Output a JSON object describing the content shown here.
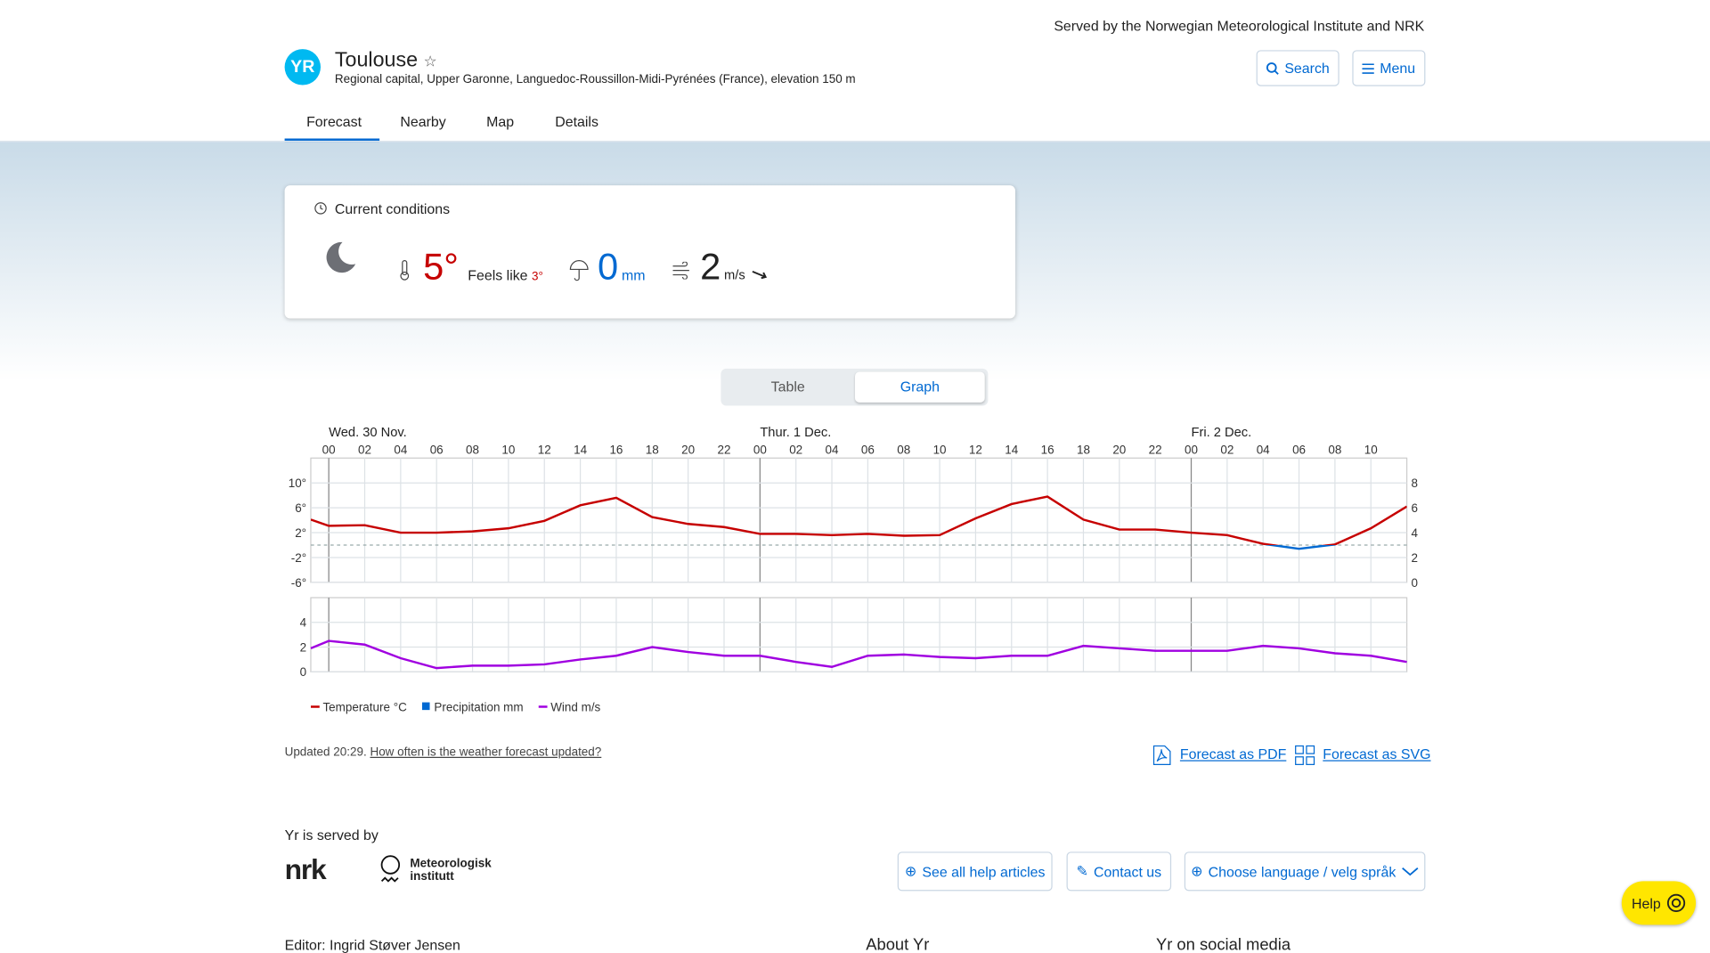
{
  "header": {
    "served_by": "Served by the Norwegian Meteorological Institute and NRK",
    "logo": "YR",
    "location": "Toulouse",
    "description": "Regional capital, Upper Garonne, Languedoc-Roussillon-Midi-Pyrénées (France), elevation 150 m",
    "search": "Search",
    "menu": "Menu"
  },
  "tabs": [
    "Forecast",
    "Nearby",
    "Map",
    "Details"
  ],
  "current": {
    "title": "Current conditions",
    "temperature": "5°",
    "feels_like_label": "Feels like",
    "feels_like": "3°",
    "precipitation": "0",
    "precipitation_unit": "mm",
    "wind": "2",
    "wind_unit": "m/s"
  },
  "view_toggle": [
    "Table",
    "Graph"
  ],
  "chart_data": {
    "type": "line",
    "days": [
      {
        "value": 0,
        "label": "Wed. 30 Nov."
      },
      {
        "value": 24,
        "label": "Thur. 1 Dec."
      },
      {
        "value": 48,
        "label": "Fri. 2 Dec."
      }
    ],
    "xlim": [
      -1,
      60
    ],
    "xticks": [
      {
        "value": 0,
        "label": "00"
      },
      {
        "value": 2,
        "label": "02"
      },
      {
        "value": 4,
        "label": "04"
      },
      {
        "value": 6,
        "label": "06"
      },
      {
        "value": 8,
        "label": "08"
      },
      {
        "value": 10,
        "label": "10"
      },
      {
        "value": 12,
        "label": "12"
      },
      {
        "value": 14,
        "label": "14"
      },
      {
        "value": 16,
        "label": "16"
      },
      {
        "value": 18,
        "label": "18"
      },
      {
        "value": 20,
        "label": "20"
      },
      {
        "value": 22,
        "label": "22"
      },
      {
        "value": 24,
        "label": "00"
      },
      {
        "value": 26,
        "label": "02"
      },
      {
        "value": 28,
        "label": "04"
      },
      {
        "value": 30,
        "label": "06"
      },
      {
        "value": 32,
        "label": "08"
      },
      {
        "value": 34,
        "label": "10"
      },
      {
        "value": 36,
        "label": "12"
      },
      {
        "value": 38,
        "label": "14"
      },
      {
        "value": 40,
        "label": "16"
      },
      {
        "value": 42,
        "label": "18"
      },
      {
        "value": 44,
        "label": "20"
      },
      {
        "value": 46,
        "label": "22"
      },
      {
        "value": 48,
        "label": "00"
      },
      {
        "value": 50,
        "label": "02"
      },
      {
        "value": 52,
        "label": "04"
      },
      {
        "value": 54,
        "label": "06"
      },
      {
        "value": 56,
        "label": "08"
      },
      {
        "value": 58,
        "label": "10"
      }
    ],
    "x": [
      -1,
      0,
      2,
      4,
      6,
      8,
      10,
      12,
      14,
      16,
      18,
      20,
      22,
      24,
      26,
      28,
      30,
      32,
      34,
      36,
      38,
      40,
      42,
      44,
      46,
      48,
      50,
      52,
      54,
      56,
      58,
      60
    ],
    "ylim": [
      -6,
      14
    ],
    "yticks": [
      {
        "value": 10,
        "label": "10°"
      },
      {
        "value": 6,
        "label": "6°"
      },
      {
        "value": 2,
        "label": "2°"
      },
      {
        "value": -2,
        "label": "-2°"
      },
      {
        "value": -6,
        "label": "-6°"
      }
    ],
    "y2lim": [
      0,
      10
    ],
    "y2ticks": [
      8,
      6,
      4,
      2,
      0
    ],
    "wind_ylim": [
      0,
      6
    ],
    "wind_yticks": [
      4,
      2,
      0
    ],
    "series": [
      {
        "name": "Temperature °C",
        "color": "#c60000",
        "cold_color": "#0069d2",
        "values": [
          4.1,
          3.1,
          3.2,
          2.0,
          2.0,
          2.2,
          2.7,
          3.9,
          6.4,
          7.6,
          4.5,
          3.4,
          2.9,
          1.8,
          1.8,
          1.6,
          1.8,
          1.5,
          1.6,
          4.3,
          6.6,
          7.8,
          4.1,
          2.5,
          2.5,
          2.0,
          1.6,
          0.2,
          -0.6,
          0.1,
          2.7,
          6.2
        ]
      },
      {
        "name": "Precipitation mm",
        "color": "#0069d2",
        "axis": "y2",
        "values": [
          0,
          0,
          0,
          0,
          0,
          0,
          0,
          0,
          0,
          0,
          0,
          0,
          0,
          0,
          0,
          0,
          0,
          0,
          0,
          0,
          0,
          0,
          0,
          0,
          0,
          0,
          0,
          0,
          0,
          0,
          0,
          0
        ]
      },
      {
        "name": "Wind m/s",
        "color": "#a000e0",
        "axis": "wind",
        "values": [
          1.9,
          2.5,
          2.2,
          1.1,
          0.3,
          0.5,
          0.5,
          0.6,
          1.0,
          1.3,
          2.0,
          1.6,
          1.3,
          1.3,
          0.8,
          0.4,
          1.3,
          1.4,
          1.2,
          1.1,
          1.3,
          1.3,
          2.1,
          1.9,
          1.7,
          1.7,
          1.7,
          2.1,
          1.9,
          1.5,
          1.3,
          0.8
        ]
      }
    ]
  },
  "updates": {
    "updated": "Updated 20:29.",
    "link": "How often is the weather forecast updated?",
    "pdf": "Forecast as PDF",
    "svg": "Forecast as SVG"
  },
  "footer": {
    "served_label": "Yr is served by",
    "nrk": "nrk",
    "met_line1": "Meteorologisk",
    "met_line2": "institutt",
    "help_articles": "See all help articles",
    "contact": "Contact us",
    "language": "Choose language / velg språk",
    "help": "Help",
    "editor": "Editor: Ingrid Støver Jensen",
    "about": "About Yr",
    "social": "Yr on social media"
  }
}
